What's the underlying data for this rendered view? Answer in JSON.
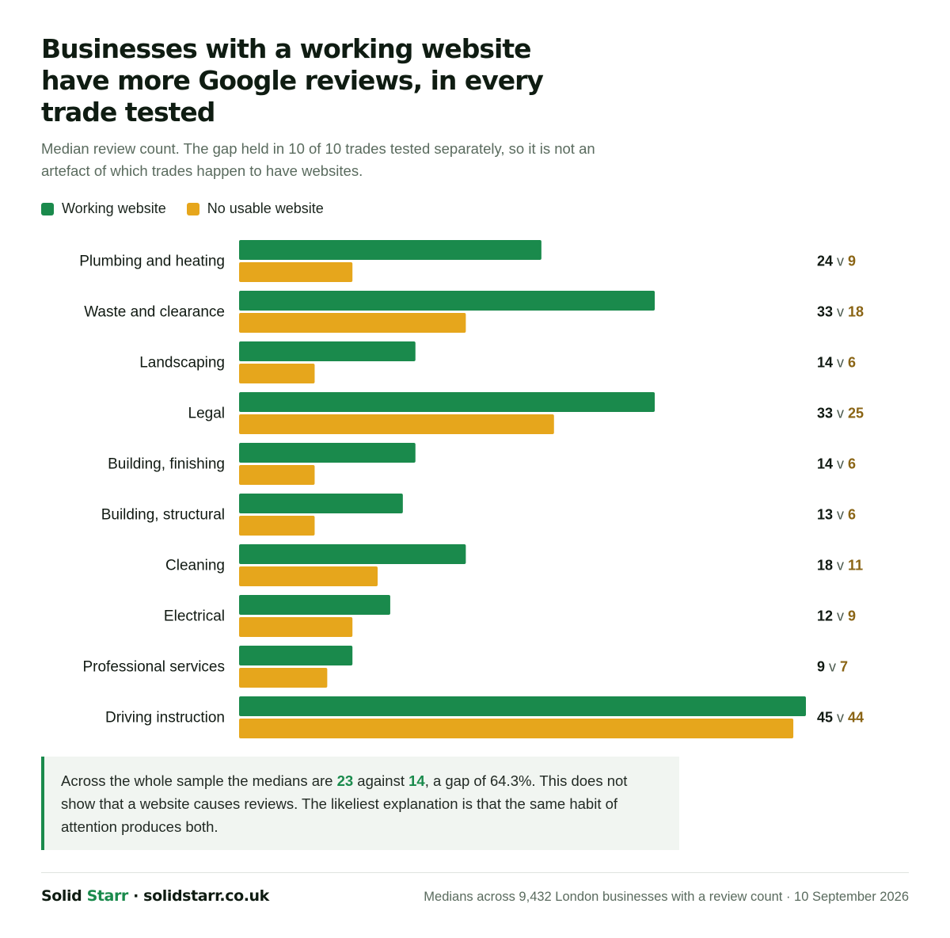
{
  "title": "Businesses with a working website have more Google reviews, in every trade tested",
  "subtitle": "Median review count. The gap held in 10 of 10 trades tested separately, so it is not an artefact of which trades happen to have websites.",
  "colors": {
    "working": "#1a8a4c",
    "none": "#e6a61c",
    "none_text": "#8a6414",
    "text": "#111a13"
  },
  "chart_data": {
    "type": "bar",
    "orientation": "horizontal",
    "categories": [
      "Plumbing and heating",
      "Waste and clearance",
      "Landscaping",
      "Legal",
      "Building, finishing",
      "Building, structural",
      "Cleaning",
      "Electrical",
      "Professional services",
      "Driving instruction"
    ],
    "series": [
      {
        "name": "Working website",
        "values": [
          24,
          33,
          14,
          33,
          14,
          13,
          18,
          12,
          9,
          45
        ]
      },
      {
        "name": "No usable website",
        "values": [
          9,
          18,
          6,
          25,
          6,
          6,
          11,
          9,
          7,
          44
        ]
      }
    ],
    "value_separator": "v",
    "xlim": [
      0,
      45
    ],
    "legend": "top-left",
    "grid": false
  },
  "callout": {
    "before": "Across the whole sample the medians are ",
    "working_median": "23",
    "middle": " against ",
    "none_median": "14",
    "after": ", a gap of 64.3%. This does not show that a website causes reviews. The likeliest explanation is that the same habit of attention produces both."
  },
  "footer": {
    "brand_part1": "Solid ",
    "brand_part2": "Starr",
    "brand_part3": " · solidstarr.co.uk",
    "note": "Medians across 9,432 London businesses with a review count · 10 September 2026"
  }
}
